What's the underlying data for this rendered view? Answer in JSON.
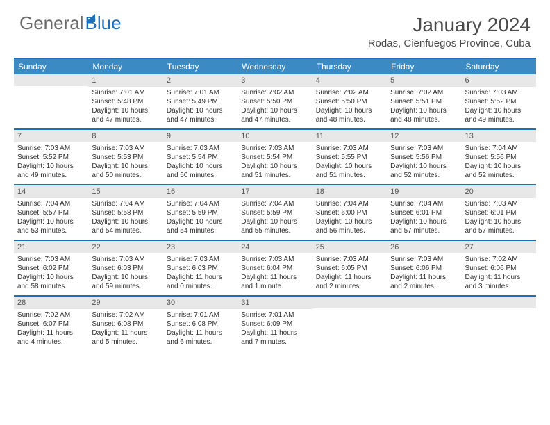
{
  "logo": {
    "part1": "General",
    "part2": "Blue"
  },
  "title": "January 2024",
  "location": "Rodas, Cienfuegos Province, Cuba",
  "day_names": [
    "Sunday",
    "Monday",
    "Tuesday",
    "Wednesday",
    "Thursday",
    "Friday",
    "Saturday"
  ],
  "colors": {
    "header_bar": "#3b8ac4",
    "accent_rule": "#1e6fb8",
    "daynum_bg": "#e8e8e8",
    "text": "#333333",
    "logo_gray": "#6a6a6a"
  },
  "start_offset": 1,
  "days": [
    {
      "n": 1,
      "sr": "7:01 AM",
      "ss": "5:48 PM",
      "dl": "10 hours and 47 minutes."
    },
    {
      "n": 2,
      "sr": "7:01 AM",
      "ss": "5:49 PM",
      "dl": "10 hours and 47 minutes."
    },
    {
      "n": 3,
      "sr": "7:02 AM",
      "ss": "5:50 PM",
      "dl": "10 hours and 47 minutes."
    },
    {
      "n": 4,
      "sr": "7:02 AM",
      "ss": "5:50 PM",
      "dl": "10 hours and 48 minutes."
    },
    {
      "n": 5,
      "sr": "7:02 AM",
      "ss": "5:51 PM",
      "dl": "10 hours and 48 minutes."
    },
    {
      "n": 6,
      "sr": "7:03 AM",
      "ss": "5:52 PM",
      "dl": "10 hours and 49 minutes."
    },
    {
      "n": 7,
      "sr": "7:03 AM",
      "ss": "5:52 PM",
      "dl": "10 hours and 49 minutes."
    },
    {
      "n": 8,
      "sr": "7:03 AM",
      "ss": "5:53 PM",
      "dl": "10 hours and 50 minutes."
    },
    {
      "n": 9,
      "sr": "7:03 AM",
      "ss": "5:54 PM",
      "dl": "10 hours and 50 minutes."
    },
    {
      "n": 10,
      "sr": "7:03 AM",
      "ss": "5:54 PM",
      "dl": "10 hours and 51 minutes."
    },
    {
      "n": 11,
      "sr": "7:03 AM",
      "ss": "5:55 PM",
      "dl": "10 hours and 51 minutes."
    },
    {
      "n": 12,
      "sr": "7:03 AM",
      "ss": "5:56 PM",
      "dl": "10 hours and 52 minutes."
    },
    {
      "n": 13,
      "sr": "7:04 AM",
      "ss": "5:56 PM",
      "dl": "10 hours and 52 minutes."
    },
    {
      "n": 14,
      "sr": "7:04 AM",
      "ss": "5:57 PM",
      "dl": "10 hours and 53 minutes."
    },
    {
      "n": 15,
      "sr": "7:04 AM",
      "ss": "5:58 PM",
      "dl": "10 hours and 54 minutes."
    },
    {
      "n": 16,
      "sr": "7:04 AM",
      "ss": "5:59 PM",
      "dl": "10 hours and 54 minutes."
    },
    {
      "n": 17,
      "sr": "7:04 AM",
      "ss": "5:59 PM",
      "dl": "10 hours and 55 minutes."
    },
    {
      "n": 18,
      "sr": "7:04 AM",
      "ss": "6:00 PM",
      "dl": "10 hours and 56 minutes."
    },
    {
      "n": 19,
      "sr": "7:04 AM",
      "ss": "6:01 PM",
      "dl": "10 hours and 57 minutes."
    },
    {
      "n": 20,
      "sr": "7:03 AM",
      "ss": "6:01 PM",
      "dl": "10 hours and 57 minutes."
    },
    {
      "n": 21,
      "sr": "7:03 AM",
      "ss": "6:02 PM",
      "dl": "10 hours and 58 minutes."
    },
    {
      "n": 22,
      "sr": "7:03 AM",
      "ss": "6:03 PM",
      "dl": "10 hours and 59 minutes."
    },
    {
      "n": 23,
      "sr": "7:03 AM",
      "ss": "6:03 PM",
      "dl": "11 hours and 0 minutes."
    },
    {
      "n": 24,
      "sr": "7:03 AM",
      "ss": "6:04 PM",
      "dl": "11 hours and 1 minute."
    },
    {
      "n": 25,
      "sr": "7:03 AM",
      "ss": "6:05 PM",
      "dl": "11 hours and 2 minutes."
    },
    {
      "n": 26,
      "sr": "7:03 AM",
      "ss": "6:06 PM",
      "dl": "11 hours and 2 minutes."
    },
    {
      "n": 27,
      "sr": "7:02 AM",
      "ss": "6:06 PM",
      "dl": "11 hours and 3 minutes."
    },
    {
      "n": 28,
      "sr": "7:02 AM",
      "ss": "6:07 PM",
      "dl": "11 hours and 4 minutes."
    },
    {
      "n": 29,
      "sr": "7:02 AM",
      "ss": "6:08 PM",
      "dl": "11 hours and 5 minutes."
    },
    {
      "n": 30,
      "sr": "7:01 AM",
      "ss": "6:08 PM",
      "dl": "11 hours and 6 minutes."
    },
    {
      "n": 31,
      "sr": "7:01 AM",
      "ss": "6:09 PM",
      "dl": "11 hours and 7 minutes."
    }
  ],
  "labels": {
    "sunrise": "Sunrise: ",
    "sunset": "Sunset: ",
    "daylight": "Daylight: "
  }
}
